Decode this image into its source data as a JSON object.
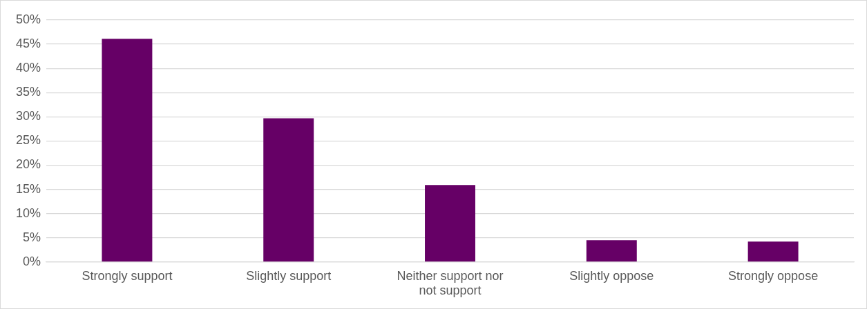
{
  "chart_data": {
    "type": "bar",
    "categories": [
      "Strongly support",
      "Slightly support",
      "Neither support nor not support",
      "Slightly oppose",
      "Strongly oppose"
    ],
    "values": [
      46.1,
      29.7,
      15.9,
      4.5,
      4.2
    ],
    "color": "#660066",
    "ylim": [
      0,
      50
    ],
    "yticks": [
      {
        "value": 0,
        "label": "0%"
      },
      {
        "value": 5,
        "label": "5%"
      },
      {
        "value": 10,
        "label": "10%"
      },
      {
        "value": 15,
        "label": "15%"
      },
      {
        "value": 20,
        "label": "20%"
      },
      {
        "value": 25,
        "label": "25%"
      },
      {
        "value": 30,
        "label": "30%"
      },
      {
        "value": 35,
        "label": "35%"
      },
      {
        "value": 40,
        "label": "40%"
      },
      {
        "value": 45,
        "label": "45%"
      },
      {
        "value": 50,
        "label": "50%"
      }
    ],
    "grid": "y",
    "legend": false
  }
}
